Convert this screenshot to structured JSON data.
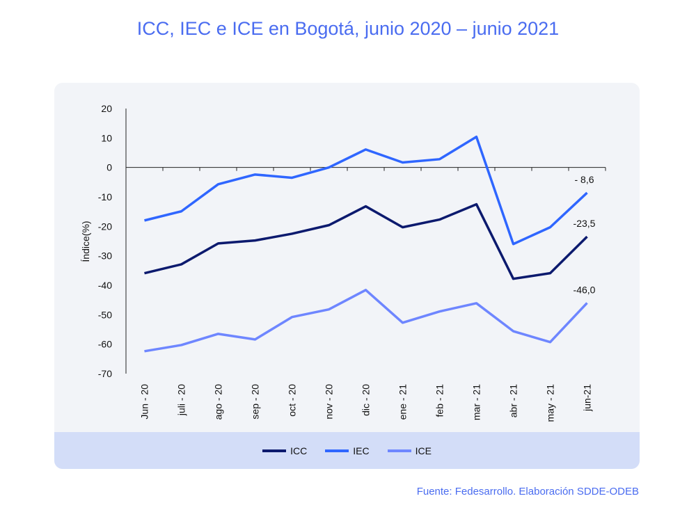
{
  "title": "ICC, IEC e ICE en Bogotá, junio 2020 – junio 2021",
  "source": "Fuente: Fedesarrollo. Elaboración SDDE-ODEB",
  "chart_data": {
    "type": "line",
    "title": "ICC, IEC e ICE en Bogotá, junio 2020 – junio 2021",
    "xlabel": "",
    "ylabel": "Índice(%)",
    "ylim": [
      -70,
      20
    ],
    "yticks": [
      20,
      10,
      0,
      -10,
      -20,
      -30,
      -40,
      -50,
      -60,
      -70
    ],
    "categories": [
      "Jun - 20",
      "juli - 20",
      "ago - 20",
      "sep - 20",
      "oct - 20",
      "nov - 20",
      "dic - 20",
      "ene - 21",
      "feb - 21",
      "mar - 21",
      "abr - 21",
      "may - 21",
      "jun-21"
    ],
    "series": [
      {
        "name": "ICC",
        "color": "#0c1a6e",
        "values": [
          -35.9,
          -32.9,
          -25.8,
          -24.8,
          -22.5,
          -19.6,
          -13.2,
          -20.3,
          -17.7,
          -12.5,
          -37.8,
          -35.9,
          -23.5
        ],
        "end_label": "-23,5"
      },
      {
        "name": "IEC",
        "color": "#2f66ff",
        "values": [
          -18.0,
          -14.9,
          -5.7,
          -2.4,
          -3.5,
          0.0,
          6.1,
          1.7,
          2.8,
          10.4,
          -26.0,
          -20.3,
          -8.6
        ],
        "end_label": "- 8,6"
      },
      {
        "name": "ICE",
        "color": "#6e86ff",
        "values": [
          -62.4,
          -60.3,
          -56.5,
          -58.4,
          -50.8,
          -48.2,
          -41.6,
          -52.7,
          -48.9,
          -46.1,
          -55.6,
          -59.3,
          -46.0
        ],
        "end_label": "-46,0"
      }
    ],
    "legend": "bottom",
    "grid": false
  }
}
